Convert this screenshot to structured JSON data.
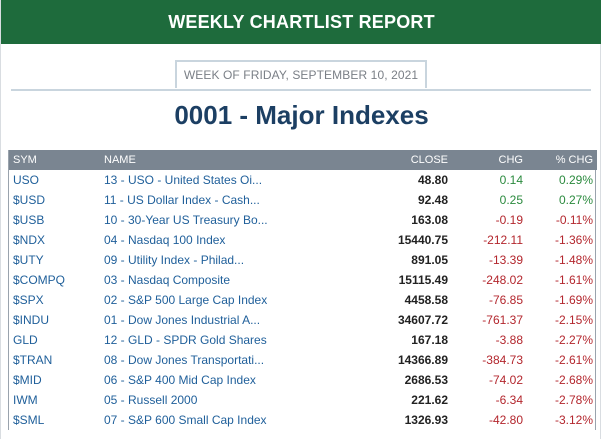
{
  "header": {
    "title": "WEEKLY CHARTLIST REPORT"
  },
  "week_label": "WEEK OF FRIDAY, SEPTEMBER 10, 2021",
  "list_title": "0001 - Major Indexes",
  "table": {
    "columns": [
      "SYM",
      "NAME",
      "CLOSE",
      "CHG",
      "% CHG"
    ],
    "rows": [
      {
        "sym": "USO",
        "name": "13 - USO - United States Oi...",
        "close": "48.80",
        "chg": "0.14",
        "pct": "0.29%",
        "dir": "pos"
      },
      {
        "sym": "$USD",
        "name": "11 - US Dollar Index - Cash...",
        "close": "92.48",
        "chg": "0.25",
        "pct": "0.27%",
        "dir": "pos"
      },
      {
        "sym": "$USB",
        "name": "10 - 30-Year US Treasury Bo...",
        "close": "163.08",
        "chg": "-0.19",
        "pct": "-0.11%",
        "dir": "neg"
      },
      {
        "sym": "$NDX",
        "name": "04 - Nasdaq 100 Index",
        "close": "15440.75",
        "chg": "-212.11",
        "pct": "-1.36%",
        "dir": "neg"
      },
      {
        "sym": "$UTY",
        "name": "09 - Utility Index - Philad...",
        "close": "891.05",
        "chg": "-13.39",
        "pct": "-1.48%",
        "dir": "neg"
      },
      {
        "sym": "$COMPQ",
        "name": "03 - Nasdaq Composite",
        "close": "15115.49",
        "chg": "-248.02",
        "pct": "-1.61%",
        "dir": "neg"
      },
      {
        "sym": "$SPX",
        "name": "02 - S&P 500 Large Cap Index",
        "close": "4458.58",
        "chg": "-76.85",
        "pct": "-1.69%",
        "dir": "neg"
      },
      {
        "sym": "$INDU",
        "name": "01 - Dow Jones Industrial A...",
        "close": "34607.72",
        "chg": "-761.37",
        "pct": "-2.15%",
        "dir": "neg"
      },
      {
        "sym": "GLD",
        "name": "12 - GLD - SPDR Gold Shares",
        "close": "167.18",
        "chg": "-3.88",
        "pct": "-2.27%",
        "dir": "neg"
      },
      {
        "sym": "$TRAN",
        "name": "08 - Dow Jones Transportati...",
        "close": "14366.89",
        "chg": "-384.73",
        "pct": "-2.61%",
        "dir": "neg"
      },
      {
        "sym": "$MID",
        "name": "06 - S&P 400 Mid Cap Index",
        "close": "2686.53",
        "chg": "-74.02",
        "pct": "-2.68%",
        "dir": "neg"
      },
      {
        "sym": "IWM",
        "name": "05 - Russell 2000",
        "close": "221.62",
        "chg": "-6.34",
        "pct": "-2.78%",
        "dir": "neg"
      },
      {
        "sym": "$SML",
        "name": "07 - S&P 600 Small Cap Index",
        "close": "1326.93",
        "chg": "-42.80",
        "pct": "-3.12%",
        "dir": "neg"
      }
    ]
  },
  "colors": {
    "header_bg": "#1e6b3c",
    "title_text": "#1c3f63",
    "table_header_bg": "#7a8591",
    "link_blue": "#1f5f9a",
    "positive": "#2b8a3e",
    "negative": "#b3262d"
  }
}
